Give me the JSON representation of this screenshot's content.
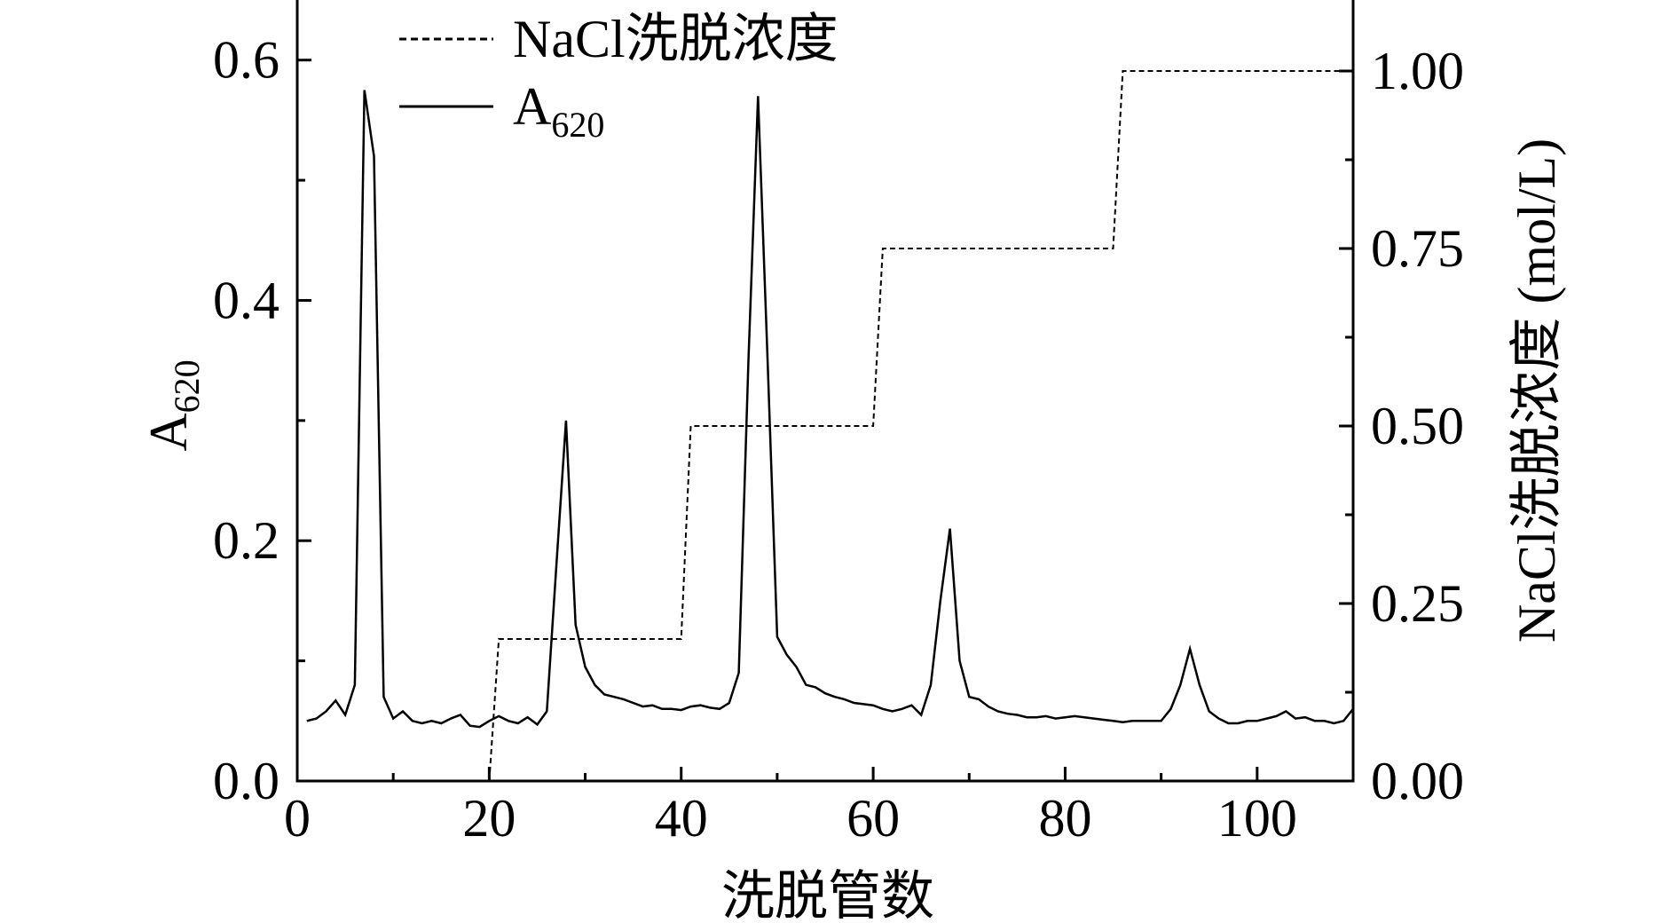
{
  "chart_data": {
    "type": "line",
    "x_label": "洗脱管数",
    "y_label": {
      "text": "A",
      "subscript": "620"
    },
    "y2_label": "NaCl洗脱浓度 (mol/L)",
    "xlim": [
      0,
      110
    ],
    "xticks": [
      0,
      20,
      40,
      60,
      80,
      100
    ],
    "xminorticks": [
      10,
      30,
      50,
      70,
      90
    ],
    "ylim": [
      0,
      0.65
    ],
    "yticks": [
      {
        "value": 0,
        "label": "0.0"
      },
      0.2,
      0.4,
      0.6
    ],
    "yminorticks": [
      0.1,
      0.3,
      0.5
    ],
    "y2lim": [
      0,
      1.1
    ],
    "y2ticks": [
      {
        "value": 0,
        "label": "0.00"
      },
      0.25,
      {
        "value": 0.5,
        "label": "0.50"
      },
      0.75,
      {
        "value": 1,
        "label": "1.00"
      }
    ],
    "y2minorticks": [
      0.125,
      0.375,
      0.625,
      0.875
    ],
    "grid": false,
    "legend": "top-left",
    "series": [
      {
        "name": "NaCl洗脱浓度",
        "axis": "y2",
        "style": "dashed",
        "color": "#000000",
        "x": [
          20,
          21,
          40,
          41,
          60,
          61,
          85,
          86,
          110
        ],
        "values": [
          0,
          0.2,
          0.2,
          0.5,
          0.5,
          0.75,
          0.75,
          1.0,
          1.0
        ]
      },
      {
        "name": "A",
        "name_subscript": "620",
        "style": "solid",
        "color": "#000000",
        "x": [
          1,
          2,
          3,
          4,
          5,
          6,
          7,
          8,
          9,
          10,
          11,
          12,
          13,
          14,
          15,
          16,
          17,
          18,
          19,
          20,
          21,
          22,
          23,
          24,
          25,
          26,
          27,
          28,
          29,
          30,
          31,
          32,
          33,
          34,
          35,
          36,
          37,
          38,
          39,
          40,
          41,
          42,
          43,
          44,
          45,
          46,
          47,
          48,
          49,
          50,
          51,
          52,
          53,
          54,
          55,
          56,
          57,
          58,
          59,
          60,
          61,
          62,
          63,
          64,
          65,
          66,
          67,
          68,
          69,
          70,
          71,
          72,
          73,
          74,
          75,
          76,
          77,
          78,
          79,
          80,
          81,
          82,
          83,
          84,
          85,
          86,
          87,
          88,
          89,
          90,
          91,
          92,
          93,
          94,
          95,
          96,
          97,
          98,
          99,
          100,
          101,
          102,
          103,
          104,
          105,
          106,
          107,
          108,
          109,
          110
        ],
        "values": [
          0.05,
          0.052,
          0.058,
          0.067,
          0.055,
          0.08,
          0.575,
          0.52,
          0.07,
          0.052,
          0.058,
          0.05,
          0.048,
          0.05,
          0.048,
          0.052,
          0.055,
          0.046,
          0.045,
          0.05,
          0.054,
          0.05,
          0.048,
          0.053,
          0.047,
          0.058,
          0.18,
          0.3,
          0.13,
          0.095,
          0.08,
          0.072,
          0.07,
          0.068,
          0.065,
          0.062,
          0.063,
          0.06,
          0.06,
          0.059,
          0.062,
          0.063,
          0.061,
          0.06,
          0.065,
          0.09,
          0.35,
          0.57,
          0.35,
          0.12,
          0.105,
          0.095,
          0.08,
          0.078,
          0.073,
          0.07,
          0.068,
          0.065,
          0.064,
          0.063,
          0.06,
          0.058,
          0.06,
          0.063,
          0.055,
          0.08,
          0.15,
          0.21,
          0.1,
          0.07,
          0.068,
          0.062,
          0.058,
          0.056,
          0.055,
          0.053,
          0.053,
          0.054,
          0.052,
          0.053,
          0.054,
          0.053,
          0.052,
          0.051,
          0.05,
          0.049,
          0.05,
          0.05,
          0.05,
          0.05,
          0.06,
          0.08,
          0.11,
          0.08,
          0.058,
          0.052,
          0.048,
          0.048,
          0.05,
          0.05,
          0.052,
          0.054,
          0.058,
          0.052,
          0.053,
          0.05,
          0.05,
          0.048,
          0.05,
          0.06
        ]
      }
    ]
  }
}
